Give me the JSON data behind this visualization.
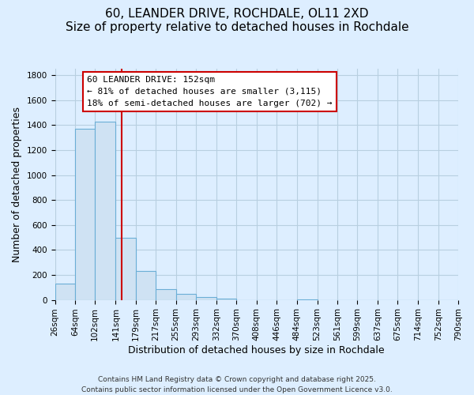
{
  "title": "60, LEANDER DRIVE, ROCHDALE, OL11 2XD",
  "subtitle": "Size of property relative to detached houses in Rochdale",
  "xlabel": "Distribution of detached houses by size in Rochdale",
  "ylabel": "Number of detached properties",
  "bar_edges": [
    26,
    64,
    102,
    141,
    179,
    217,
    255,
    293,
    332,
    370,
    408,
    446,
    484,
    523,
    561,
    599,
    637,
    675,
    714,
    752,
    790
  ],
  "bar_heights": [
    130,
    1370,
    1430,
    500,
    230,
    85,
    50,
    25,
    10,
    0,
    0,
    0,
    5,
    0,
    0,
    0,
    0,
    0,
    0,
    0
  ],
  "bar_color": "#cfe2f3",
  "bar_edge_color": "#6baed6",
  "plot_bg_color": "#ddeeff",
  "fig_bg_color": "#ddeeff",
  "grid_color": "#b8cfe0",
  "ref_line_x": 152,
  "ref_line_color": "#cc0000",
  "annotation_line1": "60 LEANDER DRIVE: 152sqm",
  "annotation_line2": "← 81% of detached houses are smaller (3,115)",
  "annotation_line3": "18% of semi-detached houses are larger (702) →",
  "annotation_box_edge_color": "#cc0000",
  "annotation_box_bg": "#ffffff",
  "ylim": [
    0,
    1850
  ],
  "yticks": [
    0,
    200,
    400,
    600,
    800,
    1000,
    1200,
    1400,
    1600,
    1800
  ],
  "footer1": "Contains HM Land Registry data © Crown copyright and database right 2025.",
  "footer2": "Contains public sector information licensed under the Open Government Licence v3.0.",
  "title_fontsize": 11,
  "xlabel_fontsize": 9,
  "ylabel_fontsize": 9,
  "tick_fontsize": 7.5,
  "annotation_fontsize": 8,
  "footer_fontsize": 6.5
}
